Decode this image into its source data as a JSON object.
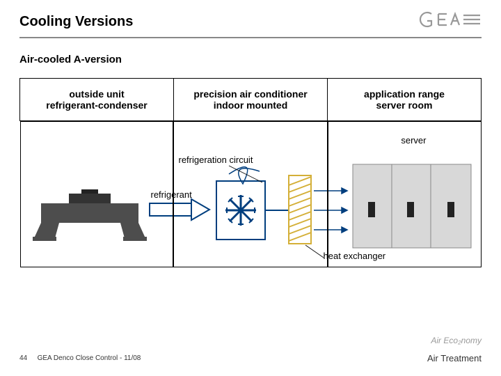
{
  "title": "Cooling Versions",
  "subtitle": "Air-cooled  A-version",
  "columns": [
    "outside unit\nrefrigerant-condenser",
    "precision air conditioner\nindoor mounted",
    "application range\nserver room"
  ],
  "labels": {
    "server": "server",
    "circuit": "refrigeration circuit",
    "refrig": "refrigerant",
    "hx": "heat exchanger"
  },
  "footer": {
    "page": "44",
    "text": "GEA Denco Close Control - 11/08",
    "right": "Air Treatment",
    "eco": "Air Eco₂nomy"
  },
  "colors": {
    "blue": "#003e7e",
    "gold": "#d4af37",
    "grey": "#4d4d4d",
    "lightgrey": "#bfbfbf",
    "axis": "#666"
  }
}
